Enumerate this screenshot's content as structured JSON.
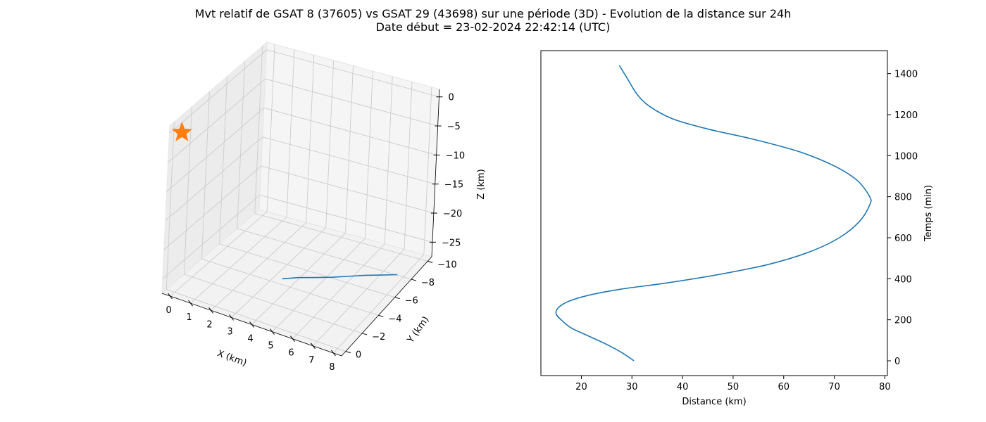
{
  "title": {
    "line1": "Mvt relatif de GSAT 8 (37605) vs GSAT 29 (43698) sur une période (3D) - Evolution de la distance sur 24h",
    "line2": "Date début = 23-02-2024 22:42:14 (UTC)"
  },
  "colors": {
    "series": "#1f77b4",
    "marker": "#ff7f0e",
    "pane": "#f2f2f2",
    "grid": "#cccccc"
  },
  "chart_data": [
    {
      "type": "line3d",
      "xlabel": "X (km)",
      "ylabel": "Y (km)",
      "zlabel": "Z (km)",
      "xlim": [
        -0.4,
        8.4
      ],
      "ylim": [
        -10.5,
        0.5
      ],
      "zlim": [
        -27.5,
        1.3
      ],
      "xticks": [
        "0",
        "1",
        "2",
        "3",
        "4",
        "5",
        "6",
        "7",
        "8"
      ],
      "yticks": [
        "0",
        "−2",
        "−4",
        "−6",
        "−8",
        "−10"
      ],
      "zticks": [
        "0",
        "−5",
        "−10",
        "−15",
        "−20",
        "−25"
      ],
      "grid": true,
      "series": [
        {
          "x": [
            3.6,
            4.1,
            4.7,
            5.3,
            5.9,
            6.5,
            7.1,
            7.7
          ],
          "y": [
            -4.0,
            -4.6,
            -5.2,
            -5.8,
            -6.4,
            -7.0,
            -7.5,
            -8.0
          ],
          "z": [
            -26.5,
            -26.6,
            -26.8,
            -27.0,
            -27.1,
            -27.2,
            -27.3,
            -27.4
          ]
        }
      ],
      "marker": {
        "symbol": "star",
        "x": 0,
        "y": 0,
        "z": 0
      }
    },
    {
      "type": "line",
      "xlabel": "Distance (km)",
      "ylabel": "Temps (min)",
      "xlim": [
        12,
        80.5
      ],
      "ylim": [
        -72,
        1512
      ],
      "xticks": [
        20,
        30,
        40,
        50,
        60,
        70,
        80
      ],
      "yticks": [
        0,
        200,
        400,
        600,
        800,
        1000,
        1200,
        1400
      ],
      "y_axis_side": "right",
      "grid": false,
      "series": [
        {
          "x": [
            30.4,
            28.0,
            25.0,
            21.5,
            18.0,
            16.0,
            15.0,
            15.5,
            17.5,
            21.5,
            28.0,
            37.0,
            47.0,
            57.0,
            65.0,
            71.0,
            75.0,
            77.0,
            77.0,
            74.5,
            70.0,
            63.0,
            54.0,
            45.0,
            38.0,
            33.5,
            31.0,
            29.0,
            27.5
          ],
          "y": [
            0,
            40,
            80,
            120,
            160,
            200,
            230,
            260,
            290,
            320,
            350,
            380,
            420,
            470,
            530,
            600,
            680,
            760,
            800,
            880,
            950,
            1020,
            1080,
            1130,
            1180,
            1240,
            1300,
            1380,
            1440
          ]
        }
      ]
    }
  ]
}
